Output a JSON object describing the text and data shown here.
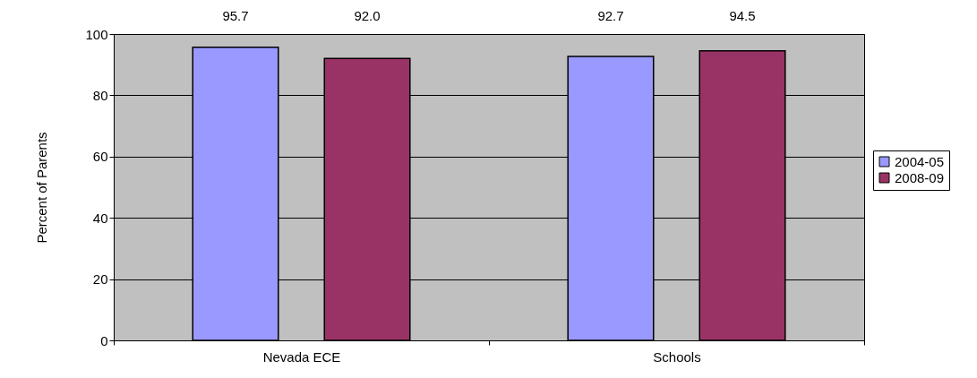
{
  "chart_data": {
    "type": "bar",
    "ylabel": "Percent of Parents",
    "categories": [
      "Nevada ECE",
      "Schools"
    ],
    "series": [
      {
        "name": "2004-05",
        "color": "#9999ff",
        "values": [
          95.7,
          92.7
        ],
        "value_labels": [
          "95.7",
          "92.7"
        ]
      },
      {
        "name": "2008-09",
        "color": "#993366",
        "values": [
          92.0,
          94.5
        ],
        "value_labels": [
          "92.0",
          "94.5"
        ]
      }
    ],
    "ylim": [
      0,
      100
    ],
    "yticks": [
      0,
      20,
      40,
      60,
      80,
      100
    ],
    "grid": "y",
    "legend": "right"
  }
}
